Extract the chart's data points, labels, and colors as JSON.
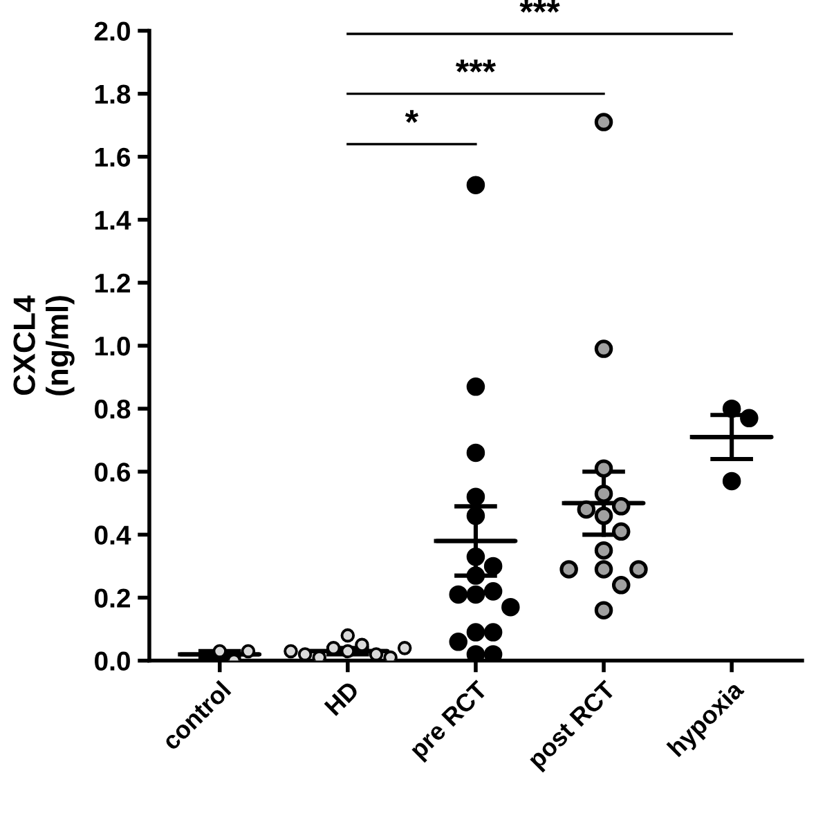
{
  "chart_data": {
    "type": "scatter",
    "ylabel": "CXCL4\n(ng/ml)",
    "categories": [
      "control",
      "HD",
      "pre RCT",
      "post RCT",
      "hypoxia"
    ],
    "ylim": [
      0,
      2.0
    ],
    "yticks": [
      {
        "value": 0,
        "label": "0.0"
      },
      {
        "value": 0.2,
        "label": "0.2"
      },
      {
        "value": 0.4,
        "label": "0.4"
      },
      {
        "value": 0.6,
        "label": "0.6"
      },
      {
        "value": 0.8,
        "label": "0.8"
      },
      {
        "value": 1.0,
        "label": "1.0"
      },
      {
        "value": 1.2,
        "label": "1.2"
      },
      {
        "value": 1.4,
        "label": "1.4"
      },
      {
        "value": 1.6,
        "label": "1.6"
      },
      {
        "value": 1.8,
        "label": "1.8"
      },
      {
        "value": 2.0,
        "label": "2.0"
      }
    ],
    "marker": "circle",
    "grid": false,
    "series": [
      {
        "color": "#d9d9d9",
        "x": [
          "control",
          "control",
          "control"
        ],
        "values": [
          0.03,
          0.0,
          0.03
        ]
      },
      {
        "color": "#d9d9d9",
        "x": [
          "HD",
          "HD",
          "HD",
          "HD",
          "HD",
          "HD",
          "HD",
          "HD",
          "HD",
          "HD"
        ],
        "values": [
          0.08,
          0.05,
          0.04,
          0.03,
          0.02,
          0.01,
          0.01,
          0.02,
          0.04,
          0.03
        ]
      },
      {
        "color": "#000000",
        "x": [
          "pre RCT",
          "pre RCT",
          "pre RCT",
          "pre RCT",
          "pre RCT",
          "pre RCT",
          "pre RCT",
          "pre RCT",
          "pre RCT",
          "pre RCT",
          "pre RCT",
          "pre RCT",
          "pre RCT",
          "pre RCT",
          "pre RCT",
          "pre RCT",
          "pre RCT"
        ],
        "values": [
          1.51,
          0.87,
          0.66,
          0.52,
          0.46,
          0.33,
          0.3,
          0.27,
          0.22,
          0.21,
          0.21,
          0.17,
          0.09,
          0.09,
          0.06,
          0.02,
          0.02
        ]
      },
      {
        "color": "#a0a0a0",
        "x": [
          "post RCT",
          "post RCT",
          "post RCT",
          "post RCT",
          "post RCT",
          "post RCT",
          "post RCT",
          "post RCT",
          "post RCT",
          "post RCT",
          "post RCT",
          "post RCT",
          "post RCT",
          "post RCT"
        ],
        "values": [
          1.71,
          0.99,
          0.61,
          0.53,
          0.49,
          0.48,
          0.46,
          0.41,
          0.35,
          0.29,
          0.29,
          0.29,
          0.24,
          0.16
        ]
      },
      {
        "color": "#000000",
        "x": [
          "hypoxia",
          "hypoxia",
          "hypoxia"
        ],
        "values": [
          0.8,
          0.77,
          0.57
        ]
      },
      {
        "type": "box",
        "color": "#000000",
        "boxes": [
          {
            "low": 0.01,
            "q1": 0.02,
            "median": 0.02,
            "q3": 0.02,
            "high": 0.03
          },
          {
            "low": 0.02,
            "q1": 0.03,
            "median": 0.03,
            "q3": 0.03,
            "high": 0.04
          },
          {
            "low": 0.27,
            "q1": 0.38,
            "median": 0.38,
            "q3": 0.38,
            "high": 0.49
          },
          {
            "low": 0.4,
            "q1": 0.5,
            "median": 0.5,
            "q3": 0.5,
            "high": 0.6
          },
          {
            "low": 0.64,
            "q1": 0.71,
            "median": 0.71,
            "q3": 0.71,
            "high": 0.78
          }
        ]
      }
    ],
    "annotations": [
      "*",
      "***",
      "***"
    ]
  }
}
